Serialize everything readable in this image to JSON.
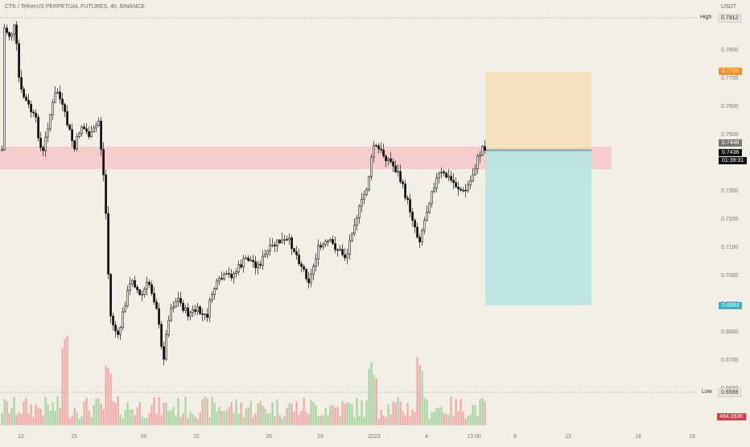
{
  "header": {
    "symbol_title": "CTK / TetherUS PERPETUAL FUTURES, 4h, BINANCE",
    "currency": "USDT"
  },
  "price_axis": {
    "ticks": [
      "0.7800",
      "0.7700",
      "0.7600",
      "0.7500",
      "0.7400",
      "0.7300",
      "0.7200",
      "0.7100",
      "0.7000",
      "0.6900",
      "0.6800",
      "0.6700",
      "0.6600"
    ],
    "min": 0.6589,
    "max": 0.7912
  },
  "badges": {
    "high_label": "High",
    "high_value": "0.7912",
    "target_value": "0.7726",
    "entry_value": "0.7448",
    "current_value": "0.7436",
    "countdown": "01:39:31",
    "stop_value": "0.6893",
    "low_label": "Low",
    "low_value": "0.6589",
    "volume_value": "494.353K"
  },
  "time_axis": {
    "labels": [
      "12",
      "15",
      "19",
      "22",
      "26",
      "29",
      "2023",
      "4",
      "13:00",
      "9",
      "12",
      "16",
      "19"
    ]
  },
  "colors": {
    "background": "#f2f0e6",
    "up_candle": "#2b2b2b",
    "down_candle": "#000000",
    "vol_up": "#a8d4a0",
    "vol_down": "#f0a8a8",
    "zone": "#f4c7c7",
    "target_zone": "#f5dfb8",
    "stop_zone": "#b8e4e2",
    "target_badge": "#f0902a",
    "stop_badge": "#26b8c4",
    "volume_badge": "#f0343c"
  }
}
